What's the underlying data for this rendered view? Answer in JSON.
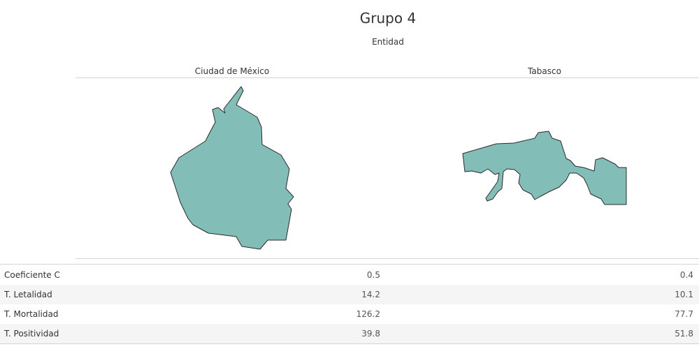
{
  "title": "Grupo 4",
  "subtitle": "Entidad",
  "chart_data": {
    "type": "table",
    "title": "Grupo 4",
    "column_header_title": "Entidad",
    "columns": [
      "Ciudad de México",
      "Tabasco"
    ],
    "map_fill": "#83bdb7",
    "rows": [
      {
        "label": "Coeficiente C",
        "values": [
          "0.5",
          "0.4"
        ]
      },
      {
        "label": "T. Letalidad",
        "values": [
          "14.2",
          "10.1"
        ]
      },
      {
        "label": "T. Mortalidad",
        "values": [
          "126.2",
          "77.7"
        ]
      },
      {
        "label": "T. Positividad",
        "values": [
          "39.8",
          "51.8"
        ]
      }
    ]
  }
}
